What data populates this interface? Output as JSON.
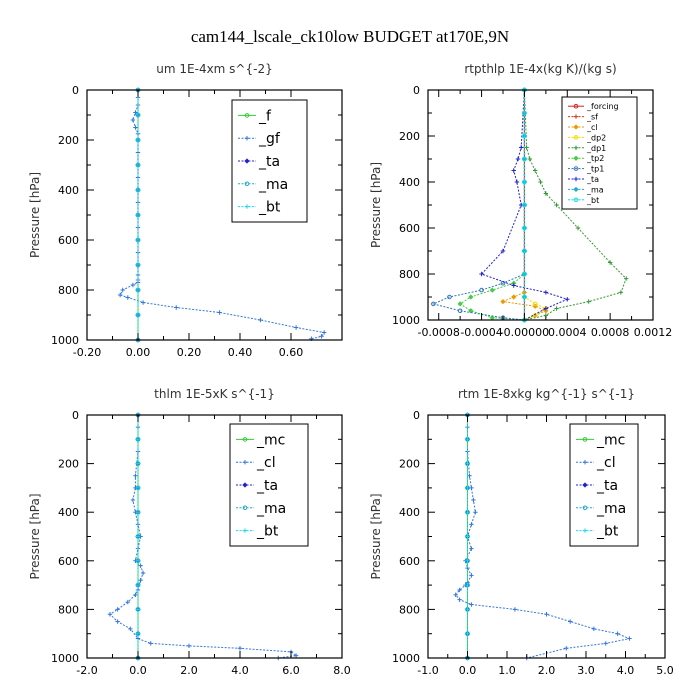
{
  "figure": {
    "title": "cam144_lscale_ck10low  BUDGET at170E,9N"
  },
  "chart_data": [
    {
      "type": "line",
      "title": "um   1E-4xm  s^{-2}",
      "xlabel": "",
      "ylabel": "Pressure [hPa]",
      "xlim": [
        -0.2,
        0.8
      ],
      "ylim": [
        1000,
        0
      ],
      "xticks": [
        -0.2,
        0.0,
        0.2,
        0.4,
        0.6
      ],
      "xtick_labels": [
        "-0.20",
        "0.00",
        "0.20",
        "0.40",
        "0.60"
      ],
      "yticks": [
        0,
        200,
        400,
        600,
        800,
        1000
      ],
      "ytick_labels": [
        "0",
        "200",
        "400",
        "600",
        "800",
        "1000"
      ],
      "legend_position": "top-right",
      "series": [
        {
          "name": "_f",
          "color": "#33cc33",
          "x": [
            0,
            0,
            0,
            0,
            0,
            0,
            0,
            0,
            0,
            0,
            0
          ],
          "y": [
            0,
            100,
            200,
            300,
            400,
            500,
            600,
            700,
            800,
            900,
            1000
          ]
        },
        {
          "name": "_gf",
          "color": "#3377dd",
          "x": [
            0.0,
            0.0,
            0.0,
            -0.01,
            -0.02,
            -0.01,
            0.0,
            0.0,
            0.0,
            0.0,
            0.0,
            0.0,
            0.0,
            0.0,
            0.0,
            0.0,
            0.0,
            0.0,
            0.0,
            0.0,
            0.0,
            -0.02,
            -0.06,
            -0.07,
            -0.04,
            0.02,
            0.15,
            0.32,
            0.48,
            0.62,
            0.73,
            0.72,
            0.68
          ],
          "y": [
            0,
            30,
            60,
            90,
            120,
            150,
            175,
            200,
            250,
            300,
            350,
            400,
            450,
            500,
            550,
            600,
            650,
            700,
            740,
            760,
            770,
            780,
            800,
            820,
            830,
            850,
            870,
            890,
            920,
            950,
            970,
            985,
            995
          ]
        },
        {
          "name": "_ta",
          "color": "#2222cc",
          "x": [
            0,
            0,
            0,
            0,
            0,
            0,
            0,
            0,
            0,
            0,
            0
          ],
          "y": [
            0,
            100,
            200,
            300,
            400,
            500,
            600,
            700,
            800,
            900,
            1000
          ]
        },
        {
          "name": "_ma",
          "color": "#22aacc",
          "x": [
            0,
            0,
            0,
            0,
            0,
            0,
            0,
            0,
            0,
            0,
            0
          ],
          "y": [
            0,
            100,
            200,
            300,
            400,
            500,
            600,
            700,
            800,
            900,
            1000
          ]
        },
        {
          "name": "_bt",
          "color": "#11ddee",
          "x": [
            0,
            0,
            0,
            0,
            0,
            0,
            0,
            0,
            0,
            0,
            0
          ],
          "y": [
            0,
            100,
            200,
            300,
            400,
            500,
            600,
            700,
            800,
            900,
            1000
          ]
        }
      ]
    },
    {
      "type": "line",
      "title": "rtpthlp   1E-4x(kg K)/(kg s)",
      "xlabel": "",
      "ylabel": "Pressure [hPa]",
      "xlim": [
        -0.0009,
        0.0012
      ],
      "ylim": [
        1000,
        0
      ],
      "xticks": [
        -0.0008,
        -0.0004,
        0.0,
        0.0004,
        0.0008,
        0.0012
      ],
      "xtick_labels": [
        "-0.0008",
        "-0.0004",
        "-0.00000",
        "0.0004",
        "0.0008",
        "0.0012"
      ],
      "yticks": [
        0,
        200,
        400,
        600,
        800,
        1000
      ],
      "ytick_labels": [
        "0",
        "200",
        "400",
        "600",
        "800",
        "1000"
      ],
      "legend_position": "top-right",
      "series": [
        {
          "name": "_forcing",
          "color": "#cc2222",
          "x": [
            0,
            0,
            0,
            0,
            0,
            0,
            0,
            0,
            0,
            0,
            0
          ],
          "y": [
            0,
            100,
            200,
            300,
            400,
            500,
            600,
            700,
            800,
            900,
            1000
          ]
        },
        {
          "name": "_sf",
          "color": "#dd3311",
          "x": [
            0,
            0,
            0,
            0,
            0,
            0,
            0,
            0,
            0,
            0,
            0
          ],
          "y": [
            0,
            100,
            200,
            300,
            400,
            500,
            600,
            700,
            800,
            900,
            1000
          ]
        },
        {
          "name": "_cl",
          "color": "#ee9900",
          "x": [
            0,
            0,
            0,
            0,
            0,
            0,
            0,
            -0.0001,
            -0.0002,
            0.0001,
            0.0002,
            0.0001,
            0
          ],
          "y": [
            0,
            200,
            400,
            600,
            700,
            800,
            880,
            900,
            920,
            940,
            960,
            980,
            1000
          ]
        },
        {
          "name": "_dp2",
          "color": "#eedd00",
          "x": [
            0,
            0,
            0,
            0,
            0,
            0,
            0.0001,
            0.0002,
            0.0001,
            0
          ],
          "y": [
            0,
            200,
            400,
            600,
            800,
            900,
            930,
            950,
            980,
            1000
          ]
        },
        {
          "name": "_dp1",
          "color": "#339933",
          "x": [
            0,
            2e-05,
            5e-05,
            0.0001,
            0.00015,
            0.0002,
            0.0003,
            0.0005,
            0.0008,
            0.00095,
            0.0009,
            0.0006,
            0.0003,
            0.0002,
            0
          ],
          "y": [
            0,
            250,
            300,
            350,
            400,
            450,
            500,
            600,
            750,
            820,
            880,
            920,
            950,
            980,
            1000
          ]
        },
        {
          "name": "_tp2",
          "color": "#44cc44",
          "x": [
            0,
            0,
            0,
            0,
            0,
            -0.0001,
            -0.0003,
            -0.0005,
            -0.0006,
            -0.0005,
            -0.0003,
            0
          ],
          "y": [
            0,
            300,
            500,
            700,
            800,
            840,
            870,
            900,
            930,
            960,
            990,
            1000
          ]
        },
        {
          "name": "_tp1",
          "color": "#3377bb",
          "x": [
            0,
            0,
            0,
            0,
            0,
            -0.0002,
            -0.0004,
            -0.0007,
            -0.00085,
            -0.0006,
            -0.0002,
            0
          ],
          "y": [
            0,
            300,
            500,
            700,
            800,
            840,
            870,
            900,
            930,
            960,
            990,
            1000
          ]
        },
        {
          "name": "_ta",
          "color": "#2222cc",
          "x": [
            0,
            -3e-05,
            -6e-05,
            -0.0001,
            -7e-05,
            -3e-05,
            -0.0002,
            -0.0004,
            -0.0001,
            0.0002,
            0.0004,
            0.0002,
            0
          ],
          "y": [
            0,
            250,
            300,
            350,
            400,
            500,
            700,
            800,
            850,
            880,
            910,
            950,
            1000
          ]
        },
        {
          "name": "_ma",
          "color": "#22aacc",
          "x": [
            0,
            0,
            0,
            0,
            0,
            0,
            0,
            0,
            0,
            0,
            0
          ],
          "y": [
            0,
            100,
            200,
            300,
            400,
            500,
            600,
            700,
            800,
            900,
            1000
          ]
        },
        {
          "name": "_bt",
          "color": "#11ddee",
          "x": [
            0,
            0,
            0,
            0,
            0,
            0,
            0,
            0,
            0,
            0,
            0
          ],
          "y": [
            0,
            100,
            200,
            300,
            400,
            500,
            600,
            700,
            800,
            900,
            1000
          ]
        }
      ]
    },
    {
      "type": "line",
      "title": "thlm   1E-5xK  s^{-1}",
      "xlabel": "",
      "ylabel": "Pressure [hPa]",
      "xlim": [
        -2.0,
        8.0
      ],
      "ylim": [
        1000,
        0
      ],
      "xticks": [
        -2.0,
        0.0,
        2.0,
        4.0,
        6.0,
        8.0
      ],
      "xtick_labels": [
        "-2.0",
        "0.0",
        "2.0",
        "4.0",
        "6.0",
        "8.0"
      ],
      "yticks": [
        0,
        200,
        400,
        600,
        800,
        1000
      ],
      "ytick_labels": [
        "0",
        "200",
        "400",
        "600",
        "800",
        "1000"
      ],
      "legend_position": "top-right",
      "series": [
        {
          "name": "_mc",
          "color": "#33cc33",
          "x": [
            0,
            0,
            0,
            0,
            0,
            0,
            0,
            0,
            0,
            0,
            0
          ],
          "y": [
            0,
            100,
            200,
            300,
            400,
            500,
            600,
            700,
            800,
            900,
            1000
          ]
        },
        {
          "name": "_cl",
          "color": "#3377dd",
          "x": [
            0.0,
            0.0,
            0.0,
            -0.1,
            -0.1,
            -0.2,
            -0.1,
            0.0,
            0.1,
            0.0,
            -0.1,
            0.1,
            0.2,
            0.1,
            0.0,
            -0.1,
            -0.4,
            -0.8,
            -1.1,
            -0.8,
            -0.3,
            0.0,
            0.5,
            2.0,
            4.0,
            6.0,
            6.2,
            5.5
          ],
          "y": [
            0,
            50,
            150,
            250,
            300,
            350,
            400,
            450,
            500,
            550,
            600,
            620,
            650,
            680,
            720,
            740,
            770,
            800,
            820,
            850,
            880,
            920,
            940,
            950,
            960,
            975,
            990,
            1000
          ]
        },
        {
          "name": "_ta",
          "color": "#2222cc",
          "x": [
            0,
            0,
            0,
            0,
            0,
            0,
            0,
            0,
            0,
            0,
            0
          ],
          "y": [
            0,
            100,
            200,
            300,
            400,
            500,
            600,
            700,
            800,
            900,
            1000
          ]
        },
        {
          "name": "_ma",
          "color": "#22aacc",
          "x": [
            0,
            0,
            0,
            0,
            0,
            0,
            0,
            0,
            0,
            0,
            0
          ],
          "y": [
            0,
            100,
            200,
            300,
            400,
            500,
            600,
            700,
            800,
            900,
            1000
          ]
        },
        {
          "name": "_bt",
          "color": "#11ddee",
          "x": [
            0,
            0,
            0,
            0,
            0,
            0,
            0,
            0,
            0,
            0,
            0
          ],
          "y": [
            0,
            100,
            200,
            300,
            400,
            500,
            600,
            700,
            800,
            900,
            1000
          ]
        }
      ]
    },
    {
      "type": "line",
      "title": "rtm   1E-8xkg kg^{-1} s^{-1}",
      "xlabel": "",
      "ylabel": "Pressure [hPa]",
      "xlim": [
        -1.0,
        5.0
      ],
      "ylim": [
        1000,
        0
      ],
      "xticks": [
        -1.0,
        0.0,
        1.0,
        2.0,
        3.0,
        4.0,
        5.0
      ],
      "xtick_labels": [
        "-1.0",
        "0.0",
        "1.0",
        "2.0",
        "3.0",
        "4.0",
        "5.0"
      ],
      "yticks": [
        0,
        200,
        400,
        600,
        800,
        1000
      ],
      "ytick_labels": [
        "0",
        "200",
        "400",
        "600",
        "800",
        "1000"
      ],
      "legend_position": "top-right",
      "series": [
        {
          "name": "_mc",
          "color": "#33cc33",
          "x": [
            0,
            0,
            0,
            0,
            0,
            0,
            0,
            0,
            0,
            0,
            0
          ],
          "y": [
            0,
            100,
            200,
            300,
            400,
            500,
            600,
            700,
            800,
            900,
            1000
          ]
        },
        {
          "name": "_cl",
          "color": "#3377dd",
          "x": [
            0.0,
            0.0,
            0.0,
            0.05,
            0.1,
            0.15,
            0.2,
            0.1,
            0.0,
            0.1,
            -0.05,
            0.0,
            0.1,
            0.0,
            -0.05,
            -0.2,
            -0.3,
            -0.2,
            0.1,
            1.2,
            2.0,
            2.6,
            3.2,
            3.8,
            4.1,
            3.5,
            2.5,
            1.5
          ],
          "y": [
            0,
            50,
            150,
            250,
            300,
            350,
            400,
            450,
            500,
            550,
            600,
            630,
            660,
            690,
            700,
            720,
            740,
            760,
            780,
            800,
            820,
            850,
            880,
            900,
            920,
            940,
            960,
            1000
          ]
        },
        {
          "name": "_ta",
          "color": "#2222cc",
          "x": [
            0,
            0,
            0,
            0,
            0,
            0,
            0,
            0,
            0,
            0,
            0
          ],
          "y": [
            0,
            100,
            200,
            300,
            400,
            500,
            600,
            700,
            800,
            900,
            1000
          ]
        },
        {
          "name": "_ma",
          "color": "#22aacc",
          "x": [
            0,
            0,
            0,
            0,
            0,
            0,
            0,
            0,
            0,
            0,
            0
          ],
          "y": [
            0,
            100,
            200,
            300,
            400,
            500,
            600,
            700,
            800,
            900,
            1000
          ]
        },
        {
          "name": "_bt",
          "color": "#11ddee",
          "x": [
            0,
            0,
            0,
            0,
            0,
            0,
            0,
            0,
            0,
            0,
            0
          ],
          "y": [
            0,
            100,
            200,
            300,
            400,
            500,
            600,
            700,
            800,
            900,
            1000
          ]
        }
      ]
    }
  ]
}
